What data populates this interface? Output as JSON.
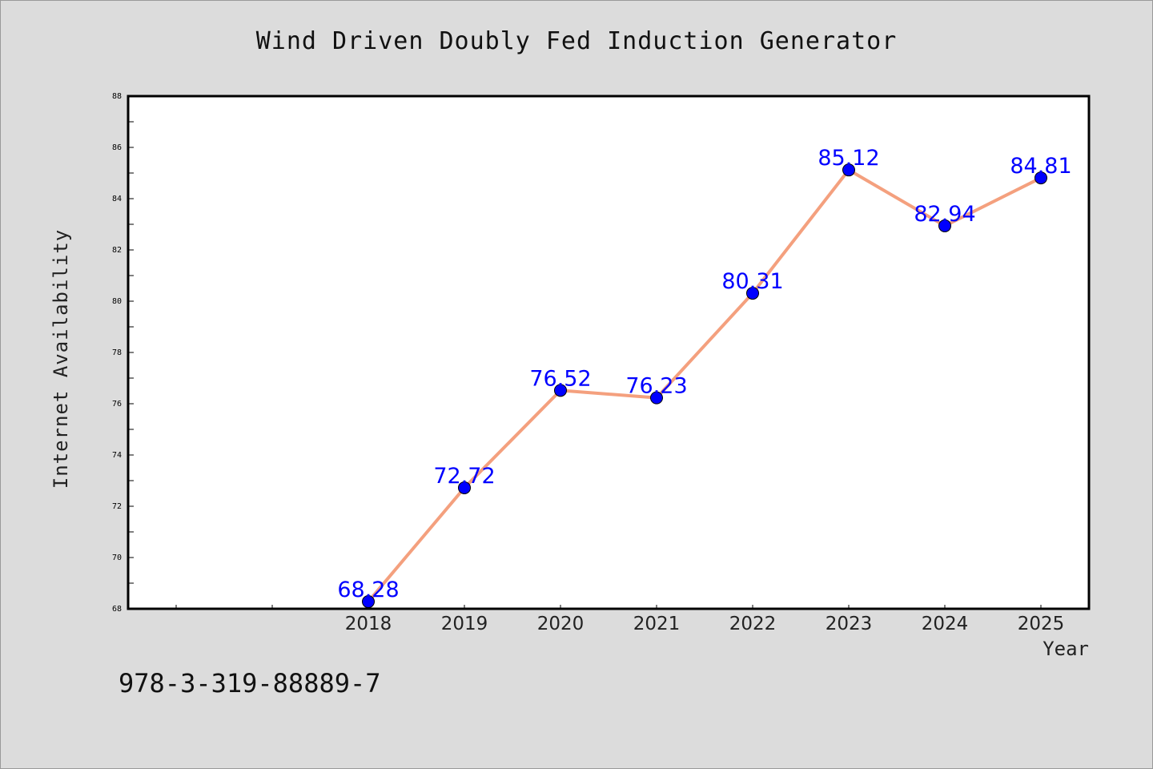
{
  "chart_data": {
    "type": "line",
    "title": "Wind Driven Doubly Fed Induction Generator",
    "xlabel": "Year",
    "ylabel": "Internet Availability",
    "categories": [
      "2018",
      "2019",
      "2020",
      "2021",
      "2022",
      "2023",
      "2024",
      "2025"
    ],
    "series": [
      {
        "values": [
          68.28,
          72.72,
          76.52,
          76.23,
          80.31,
          85.12,
          82.94,
          84.81
        ]
      }
    ],
    "data_labels": [
      "68.28",
      "72.72",
      "76.52",
      "76.23",
      "80.31",
      "85.12",
      "82.94",
      "84.81"
    ],
    "ylim": [
      68,
      88
    ],
    "yticks": [
      "68",
      "70",
      "72",
      "74",
      "76",
      "78",
      "80",
      "82",
      "84",
      "86",
      "88"
    ],
    "grid": false,
    "colors": {
      "line": "#f4a07e",
      "marker": "#0000ff",
      "label": "#0000ff",
      "background": "#dcdcdc",
      "plot_area": "#ffffff"
    }
  },
  "footnote": "978-3-319-88889-7"
}
